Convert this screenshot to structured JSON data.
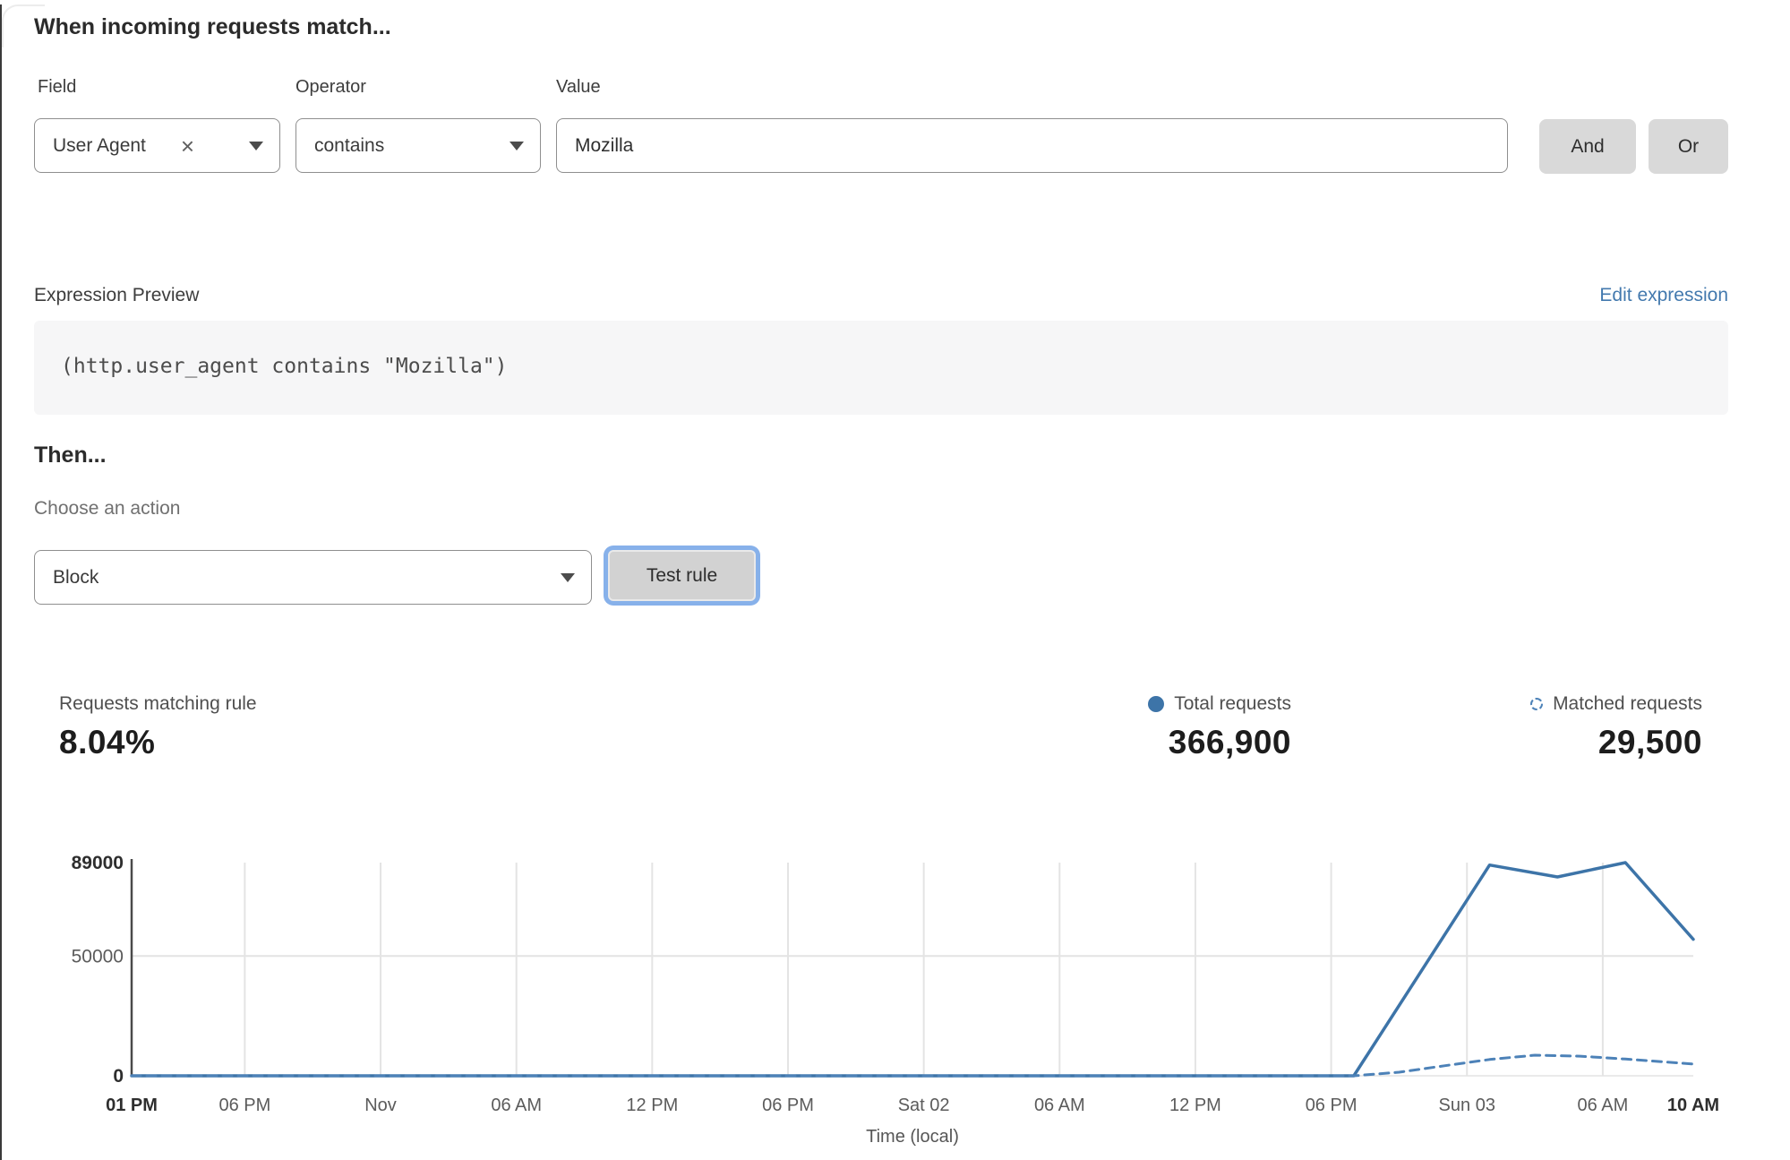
{
  "rule_builder": {
    "heading": "When incoming requests match...",
    "field": {
      "label": "Field",
      "value": "User Agent"
    },
    "operator": {
      "label": "Operator",
      "value": "contains"
    },
    "value": {
      "label": "Value",
      "value": "Mozilla"
    },
    "and_label": "And",
    "or_label": "Or"
  },
  "expression": {
    "label": "Expression Preview",
    "edit_link": "Edit expression",
    "code": "(http.user_agent contains \"Mozilla\")"
  },
  "action": {
    "heading": "Then...",
    "label": "Choose an action",
    "selected": "Block",
    "test_button": "Test rule"
  },
  "stats": {
    "matching": {
      "label": "Requests matching rule",
      "value": "8.04%"
    },
    "total": {
      "label": "Total requests",
      "value": "366,900"
    },
    "matched": {
      "label": "Matched requests",
      "value": "29,500"
    }
  },
  "chart_data": {
    "type": "line",
    "title": "",
    "xlabel": "Time (local)",
    "ylabel": "",
    "ylim": [
      0,
      89000
    ],
    "x_range_hours": [
      0,
      69
    ],
    "grid": true,
    "legend_position": "top-right",
    "y_ticks": [
      {
        "v": 0,
        "label": "0",
        "bold": true,
        "grid": false
      },
      {
        "v": 50000,
        "label": "50000",
        "bold": false,
        "grid": true
      },
      {
        "v": 89000,
        "label": "89000",
        "bold": true,
        "grid": false
      }
    ],
    "x_ticks": [
      {
        "h": 0,
        "label": "01 PM",
        "bold": true,
        "grid": false
      },
      {
        "h": 5,
        "label": "06 PM",
        "bold": false,
        "grid": true
      },
      {
        "h": 11,
        "label": "Nov",
        "bold": false,
        "grid": true
      },
      {
        "h": 17,
        "label": "06 AM",
        "bold": false,
        "grid": true
      },
      {
        "h": 23,
        "label": "12 PM",
        "bold": false,
        "grid": true
      },
      {
        "h": 29,
        "label": "06 PM",
        "bold": false,
        "grid": true
      },
      {
        "h": 35,
        "label": "Sat 02",
        "bold": false,
        "grid": true
      },
      {
        "h": 41,
        "label": "06 AM",
        "bold": false,
        "grid": true
      },
      {
        "h": 47,
        "label": "12 PM",
        "bold": false,
        "grid": true
      },
      {
        "h": 53,
        "label": "06 PM",
        "bold": false,
        "grid": true
      },
      {
        "h": 59,
        "label": "Sun 03",
        "bold": false,
        "grid": true
      },
      {
        "h": 65,
        "label": "06 AM",
        "bold": false,
        "grid": true
      },
      {
        "h": 69,
        "label": "10 AM",
        "bold": true,
        "grid": false
      }
    ],
    "series": [
      {
        "name": "Total requests",
        "style": "solid",
        "points": [
          [
            0,
            0
          ],
          [
            5,
            0
          ],
          [
            11,
            0
          ],
          [
            17,
            0
          ],
          [
            23,
            0
          ],
          [
            29,
            0
          ],
          [
            35,
            0
          ],
          [
            41,
            0
          ],
          [
            47,
            0
          ],
          [
            53,
            0
          ],
          [
            54,
            0
          ],
          [
            60,
            88000
          ],
          [
            63,
            83000
          ],
          [
            66,
            89000
          ],
          [
            69,
            57000
          ]
        ]
      },
      {
        "name": "Matched requests",
        "style": "dashed",
        "points": [
          [
            0,
            0
          ],
          [
            5,
            0
          ],
          [
            11,
            0
          ],
          [
            17,
            0
          ],
          [
            23,
            0
          ],
          [
            29,
            0
          ],
          [
            35,
            0
          ],
          [
            41,
            0
          ],
          [
            47,
            0
          ],
          [
            53,
            0
          ],
          [
            54,
            0
          ],
          [
            56,
            1500
          ],
          [
            58,
            4200
          ],
          [
            60,
            6800
          ],
          [
            62,
            8600
          ],
          [
            64,
            8200
          ],
          [
            66,
            7000
          ],
          [
            69,
            4900
          ]
        ]
      }
    ]
  },
  "colors": {
    "accent_blue": "#3d74a8",
    "dashed_blue": "#4d82b8",
    "link_blue": "#4379ae",
    "focus_ring": "#87b1ea",
    "grid": "#e4e4e4",
    "axis": "#4a4a4a",
    "tick_text": "#5b5b5b",
    "tick_text_bold": "#2e2e2e"
  }
}
